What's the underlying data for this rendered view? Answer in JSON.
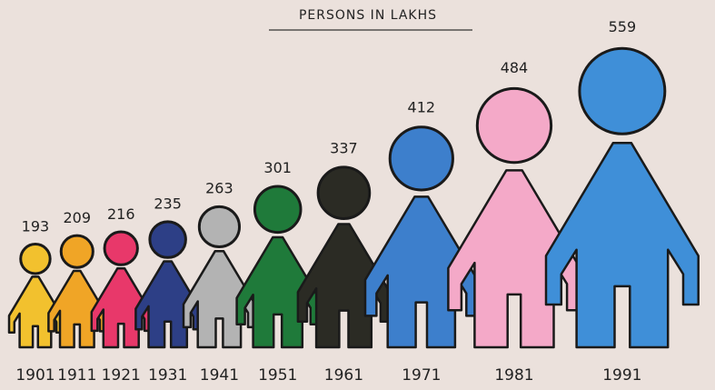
{
  "chart_data": {
    "type": "pictograph",
    "title": "PERSONS IN LAKHS",
    "categories": [
      "1901",
      "1911",
      "1921",
      "1931",
      "1941",
      "1951",
      "1961",
      "1971",
      "1981",
      "1991"
    ],
    "values": [
      193,
      209,
      216,
      235,
      263,
      301,
      337,
      412,
      484,
      559
    ],
    "colors": [
      "#f2c12e",
      "#f0a526",
      "#e8386a",
      "#2d3f86",
      "#b3b3b3",
      "#1f7a3a",
      "#2b2b24",
      "#3d7fcc",
      "#f4a9c8",
      "#3f8fd8"
    ]
  }
}
